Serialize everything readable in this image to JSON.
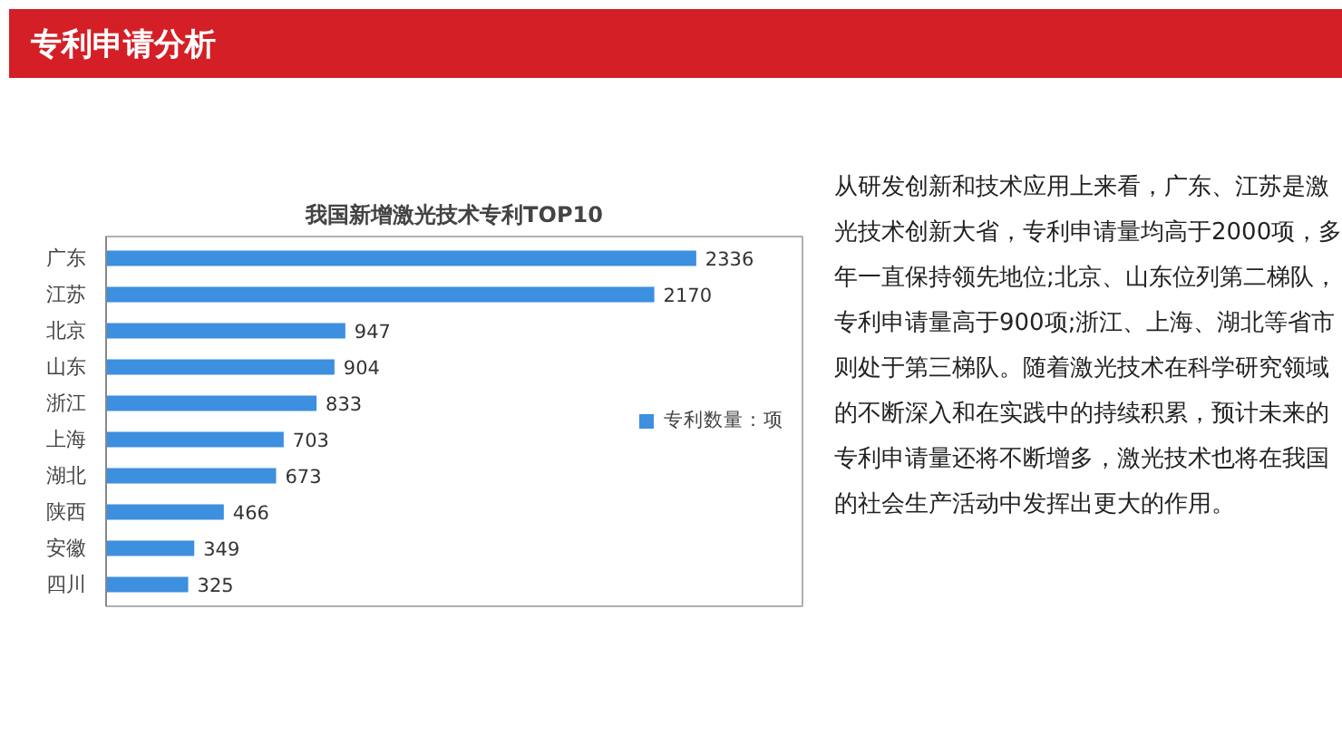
{
  "chart_data": {
    "type": "bar",
    "orientation": "horizontal",
    "title": "我国新增激光技术专利TOP10",
    "categories": [
      "广东",
      "江苏",
      "北京",
      "山东",
      "浙江",
      "上海",
      "湖北",
      "陕西",
      "安徽",
      "四川"
    ],
    "series": [
      {
        "name": "专利数量：项",
        "color": "#3d8fdf",
        "values": [
          2336,
          2170,
          947,
          904,
          833,
          703,
          673,
          466,
          349,
          325
        ]
      }
    ],
    "data_labels": true,
    "legend": "right",
    "grid": false,
    "annotations": [
      "专利申请分析",
      "从研发创新和技术应用上来看，广东、江苏是激光技术创新大省，专利申请量均高于2000项，多年一直保持领先地位;北京、山东位列第二梯队，专利申请量高于900项;浙江、上海、湖北等省市则处于第三梯队。随着激光技术在科学研究领域的不断深入和在实践中的持续积累，预计未来的专利申请量还将不断增多，激光技术也将在我国的社会生产活动中发挥出更大的作用。"
    ]
  }
}
